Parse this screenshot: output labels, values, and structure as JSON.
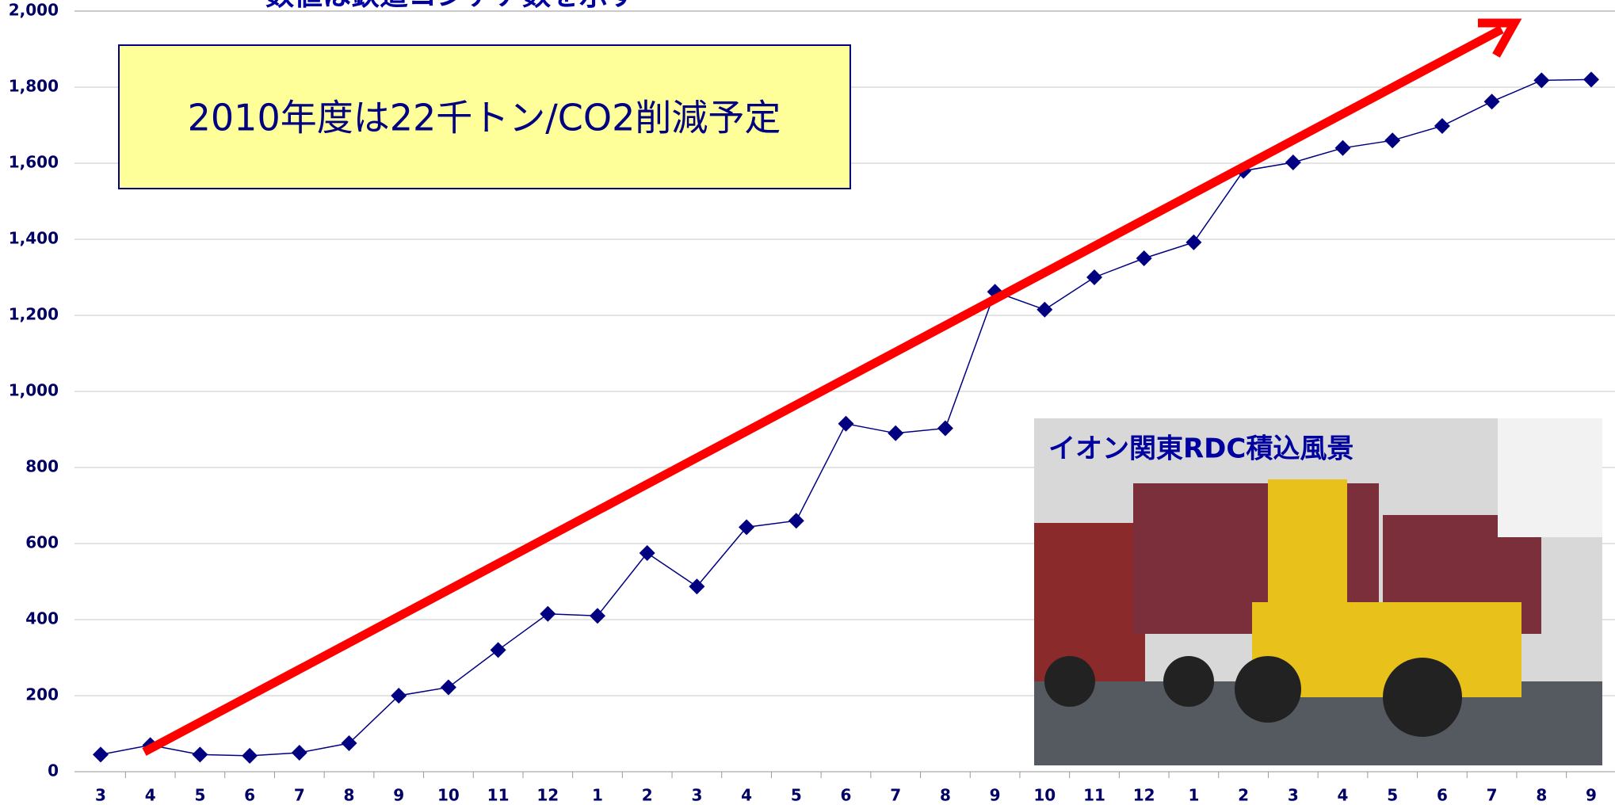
{
  "chart_data": {
    "type": "line",
    "subtitle": "数値は鉄道コンテナ数を示す",
    "annotation": "2010年度は22千トン/CO2削減予定",
    "photo_caption": "イオン関東RDC積込風景",
    "categories": [
      "3",
      "4",
      "5",
      "6",
      "7",
      "8",
      "9",
      "10",
      "11",
      "12",
      "1",
      "2",
      "3",
      "4",
      "5",
      "6",
      "7",
      "8",
      "9",
      "10",
      "11",
      "12",
      "1",
      "2",
      "3",
      "4",
      "5",
      "6",
      "7",
      "8",
      "9"
    ],
    "series": [
      {
        "color": "#000080",
        "values": [
          45,
          70,
          45,
          42,
          50,
          75,
          200,
          222,
          320,
          415,
          410,
          575,
          487,
          643,
          660,
          915,
          890,
          903,
          1262,
          1215,
          1300,
          1350,
          1392,
          1580,
          1602,
          1640,
          1660,
          1698,
          1762,
          1818,
          1820
        ]
      }
    ],
    "ylim": [
      0,
      2000
    ],
    "yticks": [
      0,
      200,
      400,
      600,
      800,
      {
        "value": 1000,
        "label": "1,000"
      },
      {
        "value": 1200,
        "label": "1,200"
      },
      {
        "value": 1400,
        "label": "1,400"
      },
      {
        "value": 1600,
        "label": "1,600"
      },
      {
        "value": 1800,
        "label": "1,800"
      },
      {
        "value": 2000,
        "label": "2,000"
      }
    ],
    "grid": true
  }
}
